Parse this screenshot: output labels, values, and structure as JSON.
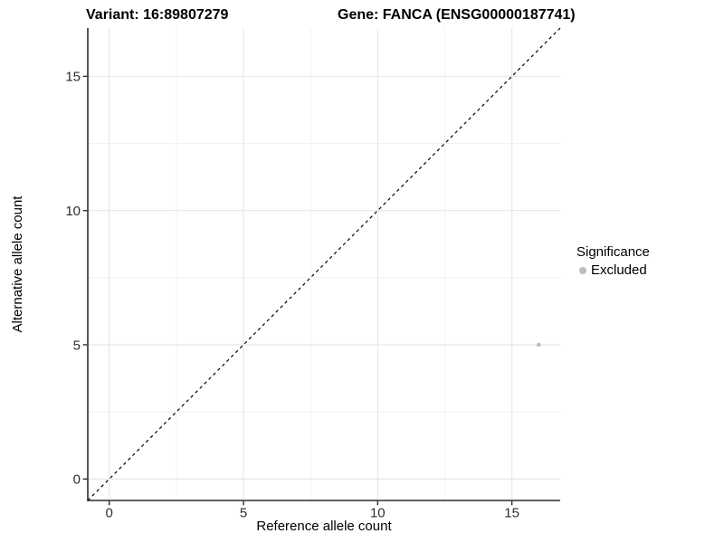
{
  "titles": {
    "variant": "Variant: 16:89807279",
    "gene": "Gene: FANCA (ENSG00000187741)"
  },
  "legend": {
    "title": "Significance",
    "items": [
      {
        "label": "Excluded",
        "color": "#bdbdbd"
      }
    ]
  },
  "chart_data": {
    "type": "scatter",
    "title": [
      "Variant: 16:89807279",
      "Gene: FANCA (ENSG00000187741)"
    ],
    "xlabel": "Reference allele count",
    "ylabel": "Alternative allele count",
    "xlim": [
      -0.8,
      16.8
    ],
    "ylim": [
      -0.8,
      16.8
    ],
    "x_ticks": [
      0,
      5,
      10,
      15
    ],
    "y_ticks": [
      0,
      5,
      10,
      15
    ],
    "x_minor_ticks": [
      2.5,
      7.5,
      12.5
    ],
    "y_minor_ticks": [
      2.5,
      7.5,
      12.5
    ],
    "grid": true,
    "legend_position": "right",
    "identity_line": {
      "slope": 1,
      "intercept": 0,
      "style": "dashed",
      "color": "#000000"
    },
    "series": [
      {
        "name": "Excluded",
        "color": "#bdbdbd",
        "points": [
          {
            "x": 16,
            "y": 5
          }
        ]
      }
    ],
    "colors": {
      "grid_major": "#e6e6e6",
      "grid_minor": "#f1f1f1",
      "axis_line": "#2b2b2b",
      "tick_label": "#2e2e2e"
    }
  }
}
